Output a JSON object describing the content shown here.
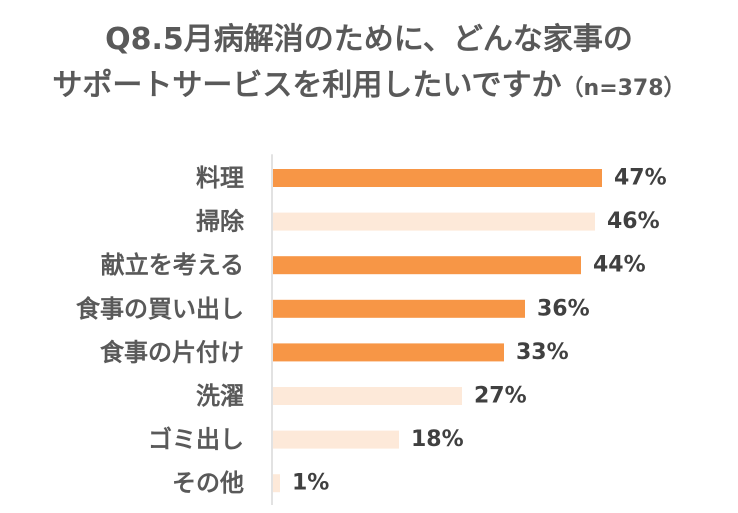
{
  "title": {
    "line1": "Q8.5月病解消のために、どんな家事の",
    "line2": "サポートサービスを利用したいですか",
    "n": "（n=378）"
  },
  "colors": {
    "highlight": "#f79646",
    "muted": "#fde9d9",
    "axis": "#d9d9d9",
    "text": "#595959"
  },
  "chart_data": {
    "type": "bar",
    "orientation": "horizontal",
    "title": "Q8.5月病解消のために、どんな家事のサポートサービスを利用したいですか（n=378）",
    "categories": [
      "料理",
      "掃除",
      "献立を考える",
      "食事の買い出し",
      "食事の片付け",
      "洗濯",
      "ゴミ出し",
      "その他"
    ],
    "values": [
      47,
      46,
      44,
      36,
      33,
      27,
      18,
      1
    ],
    "value_labels": [
      "47%",
      "46%",
      "44%",
      "36%",
      "33%",
      "27%",
      "18%",
      "1%"
    ],
    "highlighted": [
      true,
      false,
      true,
      true,
      true,
      false,
      false,
      false
    ],
    "unit": "%",
    "xlim": [
      0,
      50
    ],
    "grid": false,
    "legend": "none"
  }
}
